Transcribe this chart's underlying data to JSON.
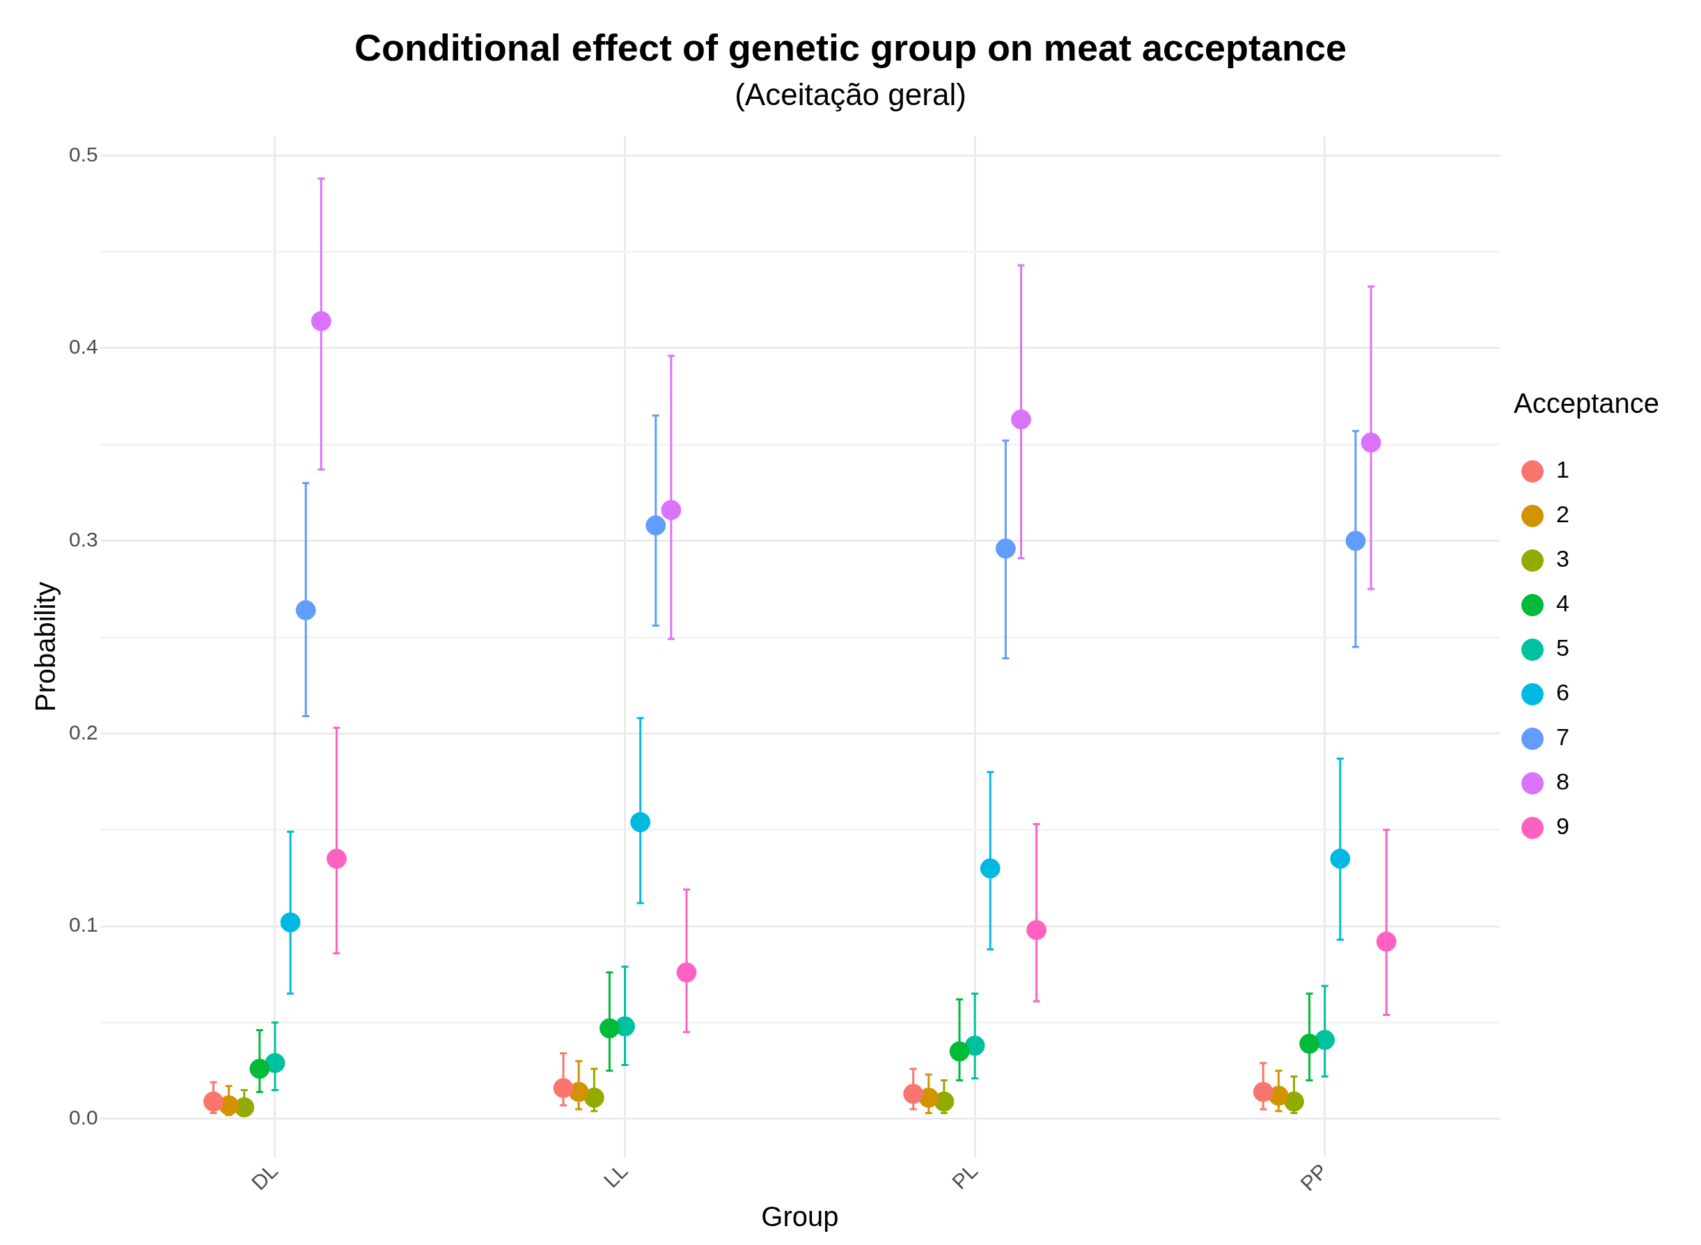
{
  "chart_data": {
    "type": "scatter",
    "title": "Conditional effect of genetic group on meat acceptance",
    "subtitle": "(Aceitação geral)",
    "xlabel": "Group",
    "ylabel": "Probability",
    "legend_title": "Acceptance",
    "categories": [
      "DL",
      "LL",
      "PL",
      "PP"
    ],
    "ylim": [
      -0.02,
      0.51
    ],
    "yticks": [
      {
        "value": 0,
        "label": "0.0"
      },
      {
        "value": 0.05,
        "label": null
      },
      0.1,
      {
        "value": 0.15,
        "label": null
      },
      0.2,
      {
        "value": 0.25,
        "label": null
      },
      0.3,
      {
        "value": 0.35,
        "label": null
      },
      0.4,
      {
        "value": 0.45,
        "label": null
      },
      0.5
    ],
    "grid": true,
    "legend": "right",
    "marker": "circle",
    "series": [
      {
        "name": "1",
        "color": "#f8766d",
        "values": [
          0.009,
          0.016,
          0.013,
          0.014
        ],
        "errors": [
          [
            0.003,
            0.019
          ],
          [
            0.007,
            0.034
          ],
          [
            0.005,
            0.026
          ],
          [
            0.005,
            0.029
          ]
        ]
      },
      {
        "name": "2",
        "color": "#d39200",
        "values": [
          0.007,
          0.014,
          0.011,
          0.012
        ],
        "errors": [
          [
            0.002,
            0.017
          ],
          [
            0.005,
            0.03
          ],
          [
            0.003,
            0.023
          ],
          [
            0.004,
            0.025
          ]
        ]
      },
      {
        "name": "3",
        "color": "#93aa00",
        "values": [
          0.006,
          0.011,
          0.009,
          0.009
        ],
        "errors": [
          [
            0.002,
            0.015
          ],
          [
            0.004,
            0.026
          ],
          [
            0.003,
            0.02
          ],
          [
            0.003,
            0.022
          ]
        ]
      },
      {
        "name": "4",
        "color": "#00ba38",
        "values": [
          0.026,
          0.047,
          0.035,
          0.039
        ],
        "errors": [
          [
            0.014,
            0.046
          ],
          [
            0.025,
            0.076
          ],
          [
            0.02,
            0.062
          ],
          [
            0.02,
            0.065
          ]
        ]
      },
      {
        "name": "5",
        "color": "#00c19f",
        "values": [
          0.029,
          0.048,
          0.038,
          0.041
        ],
        "errors": [
          [
            0.015,
            0.05
          ],
          [
            0.028,
            0.079
          ],
          [
            0.021,
            0.065
          ],
          [
            0.022,
            0.069
          ]
        ]
      },
      {
        "name": "6",
        "color": "#00b9e3",
        "values": [
          0.102,
          0.154,
          0.13,
          0.135
        ],
        "errors": [
          [
            0.065,
            0.149
          ],
          [
            0.112,
            0.208
          ],
          [
            0.088,
            0.18
          ],
          [
            0.093,
            0.187
          ]
        ]
      },
      {
        "name": "7",
        "color": "#619cff",
        "values": [
          0.264,
          0.308,
          0.296,
          0.3
        ],
        "errors": [
          [
            0.209,
            0.33
          ],
          [
            0.256,
            0.365
          ],
          [
            0.239,
            0.352
          ],
          [
            0.245,
            0.357
          ]
        ]
      },
      {
        "name": "8",
        "color": "#db72fb",
        "values": [
          0.414,
          0.316,
          0.363,
          0.351
        ],
        "errors": [
          [
            0.337,
            0.488
          ],
          [
            0.249,
            0.396
          ],
          [
            0.291,
            0.443
          ],
          [
            0.275,
            0.432
          ]
        ]
      },
      {
        "name": "9",
        "color": "#ff61c3",
        "values": [
          0.135,
          0.076,
          0.098,
          0.092
        ],
        "errors": [
          [
            0.086,
            0.203
          ],
          [
            0.045,
            0.119
          ],
          [
            0.061,
            0.153
          ],
          [
            0.054,
            0.15
          ]
        ]
      }
    ]
  }
}
